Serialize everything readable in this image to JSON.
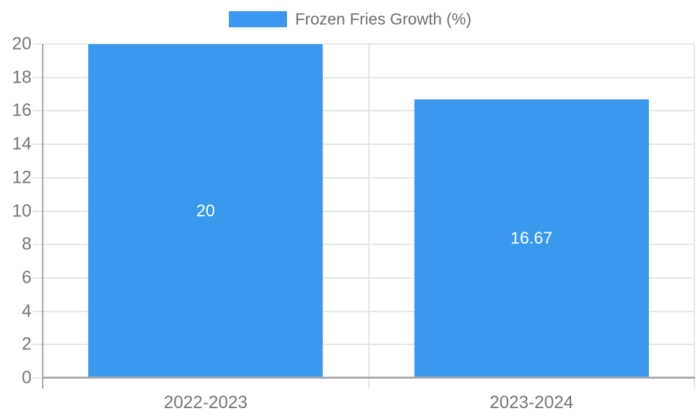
{
  "chart_data": {
    "type": "bar",
    "title": "Frozen Fries Growth (%)",
    "legend": {
      "label": "Frozen Fries Growth (%)",
      "position": "top-center"
    },
    "categories": [
      "2022-2023",
      "2023-2024"
    ],
    "series": [
      {
        "name": "Frozen Fries Growth (%)",
        "values": [
          20,
          16.67
        ],
        "data_labels": [
          "20",
          "16.67"
        ],
        "color": "#3a99ee"
      }
    ],
    "xlabel": "",
    "ylabel": "",
    "ylim": [
      0,
      20
    ],
    "ytick_step": 2,
    "ytick_labels": [
      "0",
      "2",
      "4",
      "6",
      "8",
      "10",
      "12",
      "14",
      "16",
      "18",
      "20"
    ],
    "grid": "on",
    "data_label_color": "#ffffff",
    "bar_width_fraction": 0.72
  },
  "style_colors": {
    "bar": "#3a99ee",
    "gridline": "#e6e6e6",
    "axis_line": "#a3a3a3",
    "baseline": "#ababab",
    "tick_text": "#757575",
    "legend_text": "#6e6e6e",
    "background": "#ffffff"
  }
}
